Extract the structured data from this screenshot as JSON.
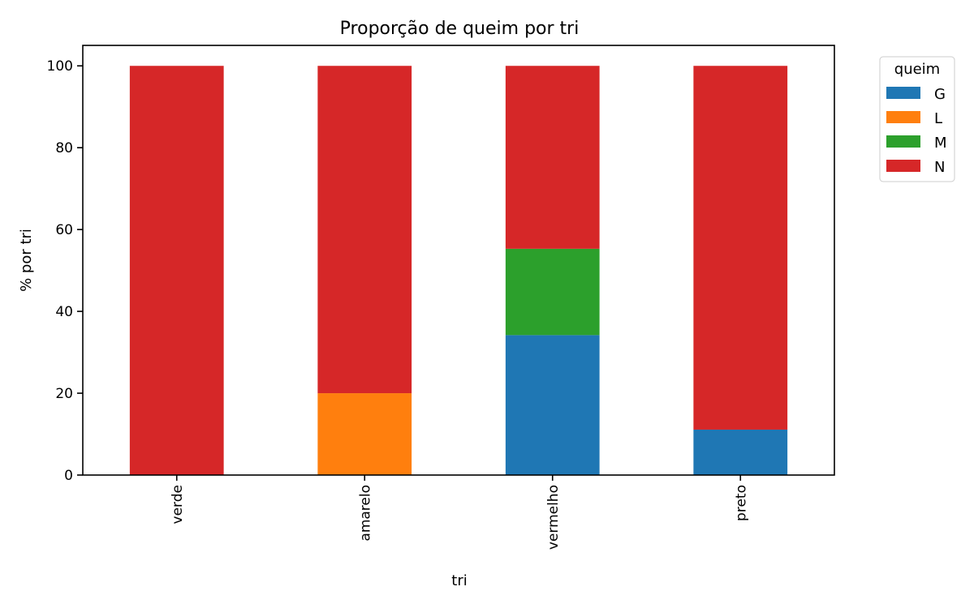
{
  "chart_data": {
    "type": "bar",
    "stacked": true,
    "title": "Proporção de queim por tri",
    "xlabel": "tri",
    "ylabel": "% por tri",
    "ylim": [
      0,
      105
    ],
    "yticks": [
      0,
      20,
      40,
      60,
      80,
      100
    ],
    "categories": [
      "verde",
      "amarelo",
      "vermelho",
      "preto"
    ],
    "legend_title": "queim",
    "legend_position": "outside-top-right",
    "series": [
      {
        "name": "G",
        "color": "#1f77b4",
        "values": [
          0,
          0,
          34.2,
          11.1
        ]
      },
      {
        "name": "L",
        "color": "#ff7f0e",
        "values": [
          0,
          20,
          0,
          0
        ]
      },
      {
        "name": "M",
        "color": "#2ca02c",
        "values": [
          0,
          0,
          21.1,
          0
        ]
      },
      {
        "name": "N",
        "color": "#d62728",
        "values": [
          100,
          80,
          44.7,
          88.9
        ]
      }
    ]
  }
}
